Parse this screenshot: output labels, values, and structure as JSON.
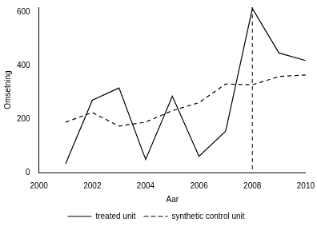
{
  "chart_data": {
    "type": "line",
    "x_label": "Aar",
    "y_label": "Omsetning",
    "x": [
      2001,
      2002,
      2003,
      2004,
      2005,
      2006,
      2007,
      2008,
      2009,
      2010
    ],
    "series": [
      {
        "name": "treated unit",
        "color": "#000000",
        "line_style": "solid",
        "values": [
          33,
          271,
          317,
          49,
          286,
          61,
          155,
          615,
          448,
          420
        ]
      },
      {
        "name": "synthetic control unit",
        "color": "#000000",
        "line_style": "dashed",
        "values": [
          189,
          225,
          174,
          189,
          232,
          262,
          332,
          329,
          360,
          366
        ]
      }
    ],
    "xlim": [
      2000,
      2010
    ],
    "xticks": [
      2000,
      2002,
      2004,
      2006,
      2008,
      2010
    ],
    "ylim": [
      0,
      620
    ],
    "yticks": [
      0,
      200,
      400,
      600
    ],
    "grid": false,
    "legend": "bottom",
    "annotations": [
      {
        "type": "vline",
        "x": 2008,
        "color": "#000000",
        "line_style": "dashed"
      }
    ]
  }
}
